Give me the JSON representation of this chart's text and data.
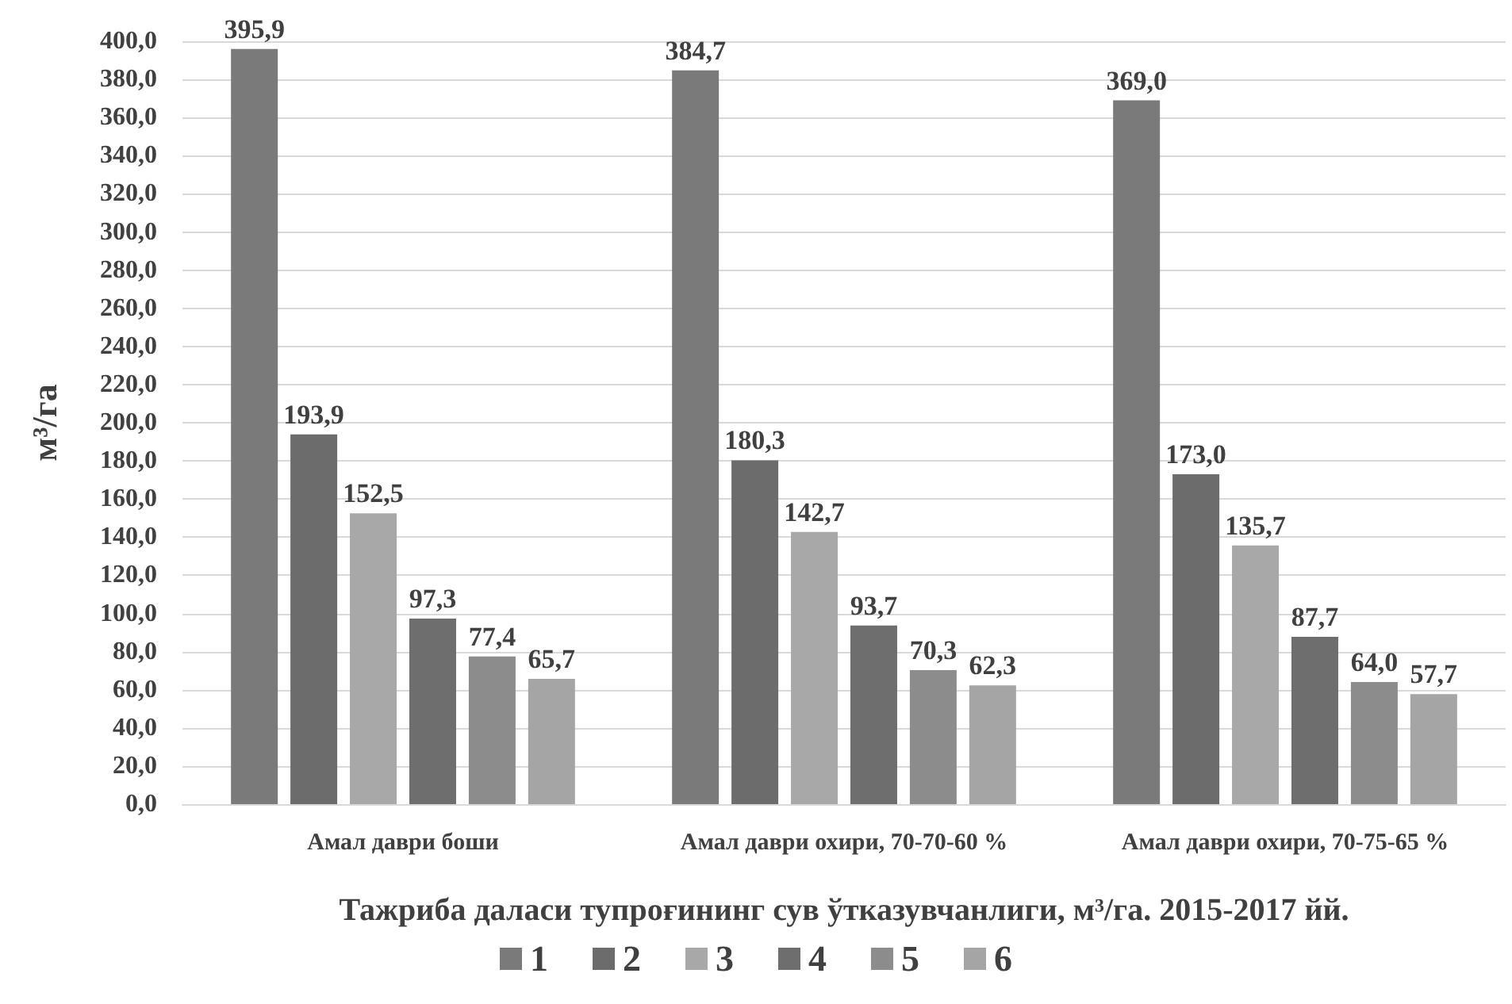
{
  "chart_data": {
    "type": "bar",
    "xlabel": "Тажриба даласи тупроғининг сув ўтказувчанлиги, м³/га. 2015-2017 йй.",
    "ylabel": "м³/га",
    "categories": [
      "Амал даври боши",
      "Амал даври охири, 70-70-60 %",
      "Амал даври охири, 70-75-65 %"
    ],
    "series": [
      {
        "name": "1",
        "color": "#7a7a7a",
        "values": [
          395.9,
          384.7,
          369.0
        ],
        "value_labels": [
          "395,9",
          "384,7",
          "369,0"
        ]
      },
      {
        "name": "2",
        "color": "#6c6c6c",
        "values": [
          193.9,
          180.3,
          173.0
        ],
        "value_labels": [
          "193,9",
          "180,3",
          "173,0"
        ]
      },
      {
        "name": "3",
        "color": "#a8a8a8",
        "values": [
          152.5,
          142.7,
          135.7
        ],
        "value_labels": [
          "152,5",
          "142,7",
          "135,7"
        ]
      },
      {
        "name": "4",
        "color": "#6e6e6e",
        "values": [
          97.3,
          93.7,
          87.7
        ],
        "value_labels": [
          "97,3",
          "93,7",
          "87,7"
        ]
      },
      {
        "name": "5",
        "color": "#8c8c8c",
        "values": [
          77.4,
          70.3,
          64.0
        ],
        "value_labels": [
          "77,4",
          "70,3",
          "64,0"
        ]
      },
      {
        "name": "6",
        "color": "#a5a5a5",
        "values": [
          65.7,
          62.3,
          57.7
        ],
        "value_labels": [
          "65,7",
          "62,3",
          "57,7"
        ]
      }
    ],
    "ylim": [
      0,
      400
    ],
    "yticks": [
      {
        "value": 0,
        "label": "0,0"
      },
      {
        "value": 20,
        "label": "20,0"
      },
      {
        "value": 40,
        "label": "40,0"
      },
      {
        "value": 60,
        "label": "60,0"
      },
      {
        "value": 80,
        "label": "80,0"
      },
      {
        "value": 100,
        "label": "100,0"
      },
      {
        "value": 120,
        "label": "120,0"
      },
      {
        "value": 140,
        "label": "140,0"
      },
      {
        "value": 160,
        "label": "160,0"
      },
      {
        "value": 180,
        "label": "180,0"
      },
      {
        "value": 200,
        "label": "200,0"
      },
      {
        "value": 220,
        "label": "220,0"
      },
      {
        "value": 240,
        "label": "240,0"
      },
      {
        "value": 260,
        "label": "260,0"
      },
      {
        "value": 280,
        "label": "280,0"
      },
      {
        "value": 300,
        "label": "300,0"
      },
      {
        "value": 320,
        "label": "320,0"
      },
      {
        "value": 340,
        "label": "340,0"
      },
      {
        "value": 360,
        "label": "360,0"
      },
      {
        "value": 380,
        "label": "380,0"
      },
      {
        "value": 400,
        "label": "400,0"
      }
    ],
    "grid": "y",
    "legend": "bottom"
  }
}
